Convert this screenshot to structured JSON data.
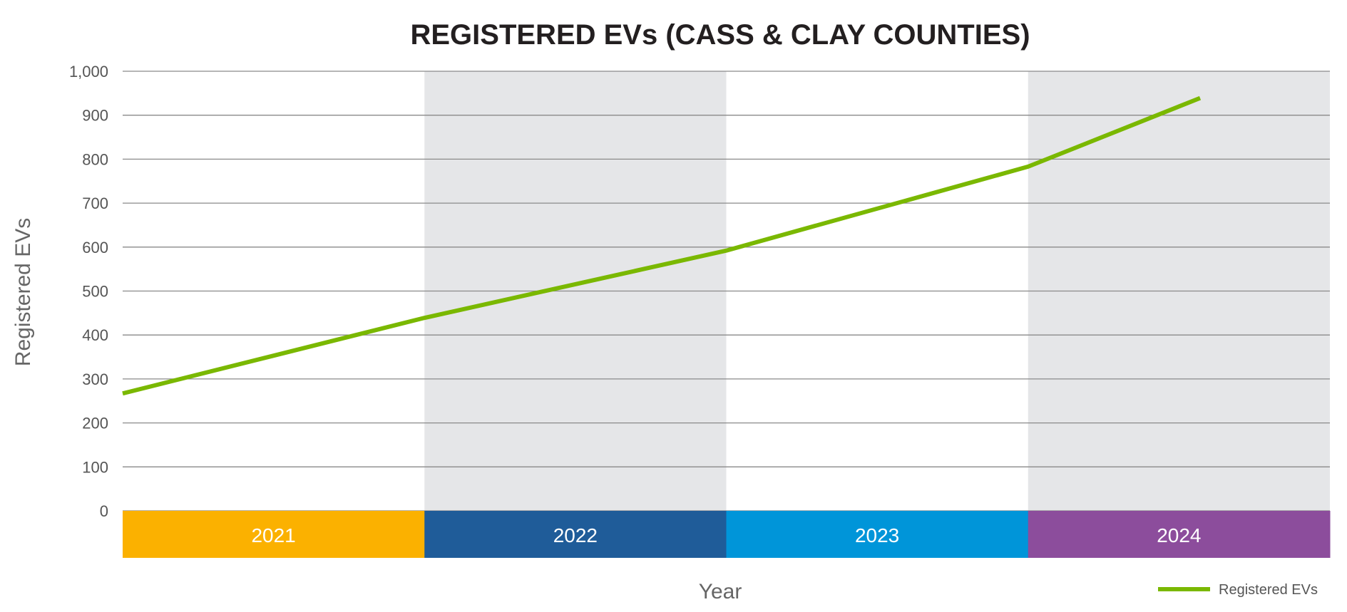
{
  "chart_data": {
    "type": "line",
    "title": "REGISTERED EVs (CASS & CLAY COUNTIES)",
    "xlabel": "Year",
    "ylabel": "Registered EVs",
    "ylim": [
      0,
      1000
    ],
    "yticks": [
      "0",
      "100",
      "200",
      "300",
      "400",
      "500",
      "600",
      "700",
      "800",
      "900",
      "1,000"
    ],
    "categories": [
      "2021",
      "2022",
      "2023",
      "2024"
    ],
    "category_colors": [
      "#fbb100",
      "#1f5c99",
      "#0095d9",
      "#8c4d9c"
    ],
    "band_shading": [
      "#ffffff",
      "#e5e6e8",
      "#ffffff",
      "#e5e6e8"
    ],
    "xlim": [
      2021,
      2025
    ],
    "grid": true,
    "legend_placement": "bottom-right",
    "series": [
      {
        "name": "Registered EVs",
        "color": "#7ab800",
        "x": [
          2021.0,
          2022.0,
          2023.0,
          2024.0,
          2024.57
        ],
        "y": [
          267,
          439,
          592,
          783,
          939
        ]
      }
    ]
  }
}
